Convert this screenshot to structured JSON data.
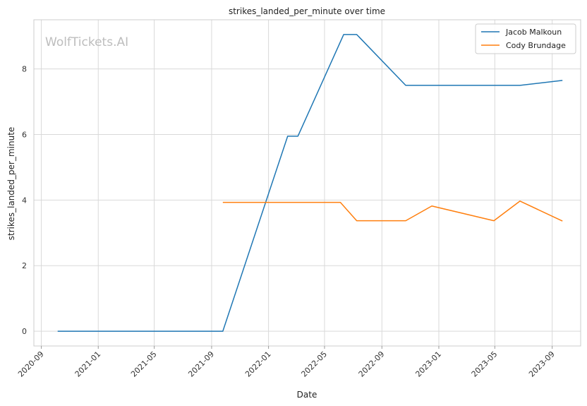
{
  "chart_data": {
    "type": "line",
    "title": "strikes_landed_per_minute over time",
    "xlabel": "Date",
    "ylabel": "strikes_landed_per_minute",
    "watermark": "WolfTickets.AI",
    "x_ticks": [
      "2020-09",
      "2021-01",
      "2021-05",
      "2021-09",
      "2022-01",
      "2022-05",
      "2022-09",
      "2023-01",
      "2023-05",
      "2023-09"
    ],
    "y_ticks": [
      0,
      2,
      4,
      6,
      8
    ],
    "xlim": [
      "2020-08-16",
      "2023-11-01"
    ],
    "ylim": [
      -0.45,
      9.5
    ],
    "grid": true,
    "legend_position": "top-right",
    "series": [
      {
        "name": "Jacob Malkoun",
        "color": "#1f77b4",
        "points": [
          {
            "x": "2020-10-06",
            "y": 0.0
          },
          {
            "x": "2021-09-25",
            "y": 0.0
          },
          {
            "x": "2022-02-11",
            "y": 5.95
          },
          {
            "x": "2022-03-05",
            "y": 5.95
          },
          {
            "x": "2022-06-11",
            "y": 9.05
          },
          {
            "x": "2022-07-09",
            "y": 9.05
          },
          {
            "x": "2022-10-22",
            "y": 7.5
          },
          {
            "x": "2023-06-24",
            "y": 7.5
          },
          {
            "x": "2023-09-23",
            "y": 7.65
          }
        ]
      },
      {
        "name": "Cody Brundage",
        "color": "#ff7f0e",
        "points": [
          {
            "x": "2021-09-25",
            "y": 3.93
          },
          {
            "x": "2022-06-04",
            "y": 3.93
          },
          {
            "x": "2022-07-09",
            "y": 3.37
          },
          {
            "x": "2022-10-22",
            "y": 3.37
          },
          {
            "x": "2022-12-17",
            "y": 3.82
          },
          {
            "x": "2023-04-29",
            "y": 3.37
          },
          {
            "x": "2023-06-24",
            "y": 3.97
          },
          {
            "x": "2023-09-23",
            "y": 3.36
          }
        ]
      }
    ]
  }
}
